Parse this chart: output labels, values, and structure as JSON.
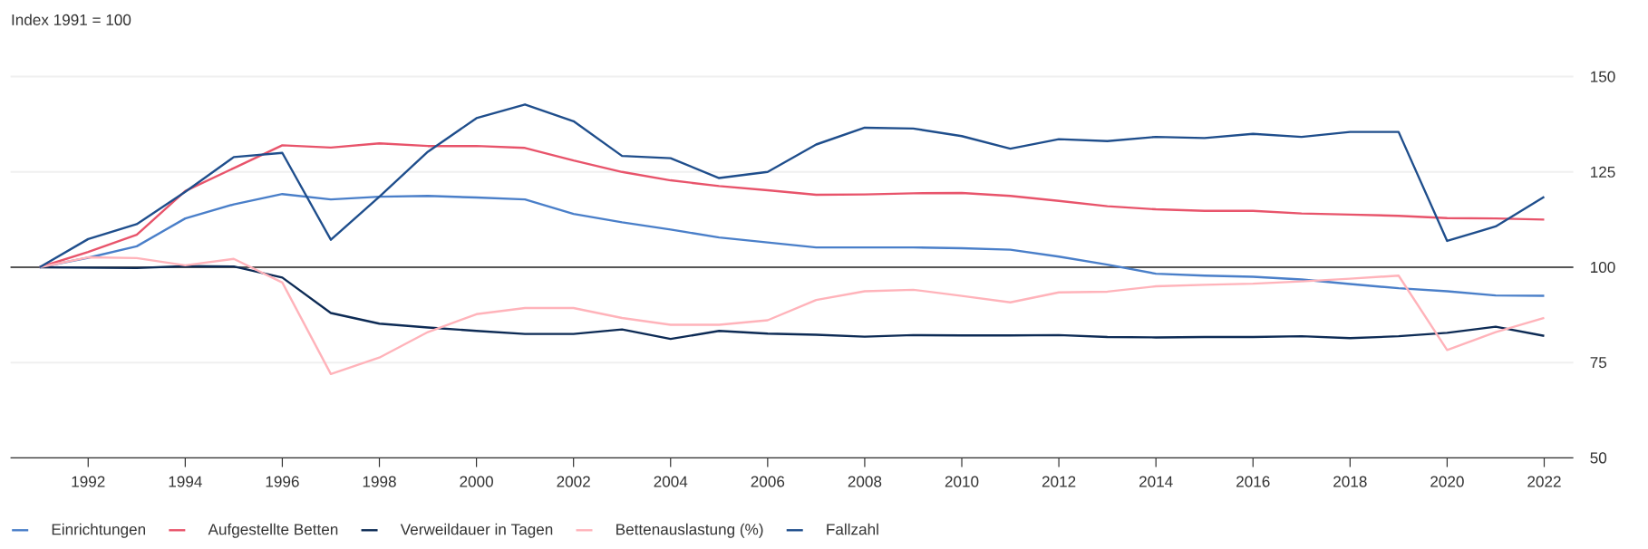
{
  "chart_data": {
    "type": "line",
    "subtitle": "Index 1991 = 100",
    "x": [
      1991,
      1992,
      1993,
      1994,
      1995,
      1996,
      1997,
      1998,
      1999,
      2000,
      2001,
      2002,
      2003,
      2004,
      2005,
      2006,
      2007,
      2008,
      2009,
      2010,
      2011,
      2012,
      2013,
      2014,
      2015,
      2016,
      2017,
      2018,
      2019,
      2020,
      2021,
      2022
    ],
    "series": [
      {
        "name": "Einrichtungen",
        "color": "#4a7fc9",
        "values": [
          100,
          102.5,
          105.5,
          112.8,
          116.5,
          119.2,
          117.8,
          118.5,
          118.7,
          118.3,
          117.8,
          114,
          111.8,
          109.9,
          107.8,
          106.5,
          105.2,
          105.2,
          105.2,
          105,
          104.6,
          102.8,
          100.7,
          98.3,
          97.8,
          97.5,
          96.8,
          95.6,
          94.5,
          93.7,
          92.6,
          92.5
        ]
      },
      {
        "name": "Aufgestellte Betten",
        "color": "#e8546b",
        "values": [
          100,
          104,
          108.5,
          120,
          126,
          132,
          131.4,
          132.5,
          131.8,
          131.8,
          131.3,
          128,
          125,
          122.8,
          121.3,
          120.2,
          119,
          119.1,
          119.4,
          119.5,
          118.7,
          117.4,
          116,
          115.2,
          114.8,
          114.8,
          114.1,
          113.8,
          113.5,
          112.9,
          112.8,
          112.5
        ]
      },
      {
        "name": "Verweildauer in Tagen",
        "color": "#0d2b55",
        "values": [
          100,
          99.9,
          99.8,
          100.3,
          100.2,
          97.3,
          88,
          85.2,
          84.2,
          83.3,
          82.5,
          82.5,
          83.7,
          81.2,
          83.3,
          82.6,
          82.3,
          81.8,
          82.2,
          82.1,
          82.1,
          82.2,
          81.7,
          81.6,
          81.7,
          81.7,
          81.9,
          81.4,
          81.9,
          82.8,
          84.4,
          82
        ]
      },
      {
        "name": "Bettenauslastung (%)",
        "color": "#ffb3ba",
        "values": [
          100,
          102.6,
          102.4,
          100.5,
          102.2,
          96,
          72,
          76.3,
          83,
          87.7,
          89.3,
          89.3,
          86.7,
          84.9,
          84.9,
          86.1,
          91.4,
          93.7,
          94.1,
          92.5,
          90.8,
          93.4,
          93.6,
          95,
          95.4,
          95.7,
          96.3,
          97,
          97.8,
          78.3,
          83,
          86.7
        ]
      },
      {
        "name": "Fallzahl",
        "color": "#1f4e8c",
        "values": [
          100,
          107.4,
          111.3,
          119.8,
          128.9,
          130,
          107.2,
          118.5,
          130.3,
          139.1,
          142.7,
          138.3,
          129.2,
          128.6,
          123.4,
          125,
          132.2,
          136.6,
          136.4,
          134.4,
          131.1,
          133.6,
          133.1,
          134.2,
          133.9,
          135,
          134.2,
          135.5,
          135.5,
          106.9,
          110.7,
          118.5
        ]
      }
    ],
    "xlim": [
      1990.4,
      2022.6
    ],
    "xticks": [
      1992,
      1994,
      1996,
      1998,
      2000,
      2002,
      2004,
      2006,
      2008,
      2010,
      2012,
      2014,
      2016,
      2018,
      2020,
      2022
    ],
    "ylim": [
      50,
      150
    ],
    "yticks": [
      50,
      75,
      100,
      125,
      150
    ],
    "grid": "y",
    "legend": "bottom",
    "ref_lines": [
      {
        "axis": "y",
        "value": 100,
        "color": "#222222"
      }
    ]
  }
}
